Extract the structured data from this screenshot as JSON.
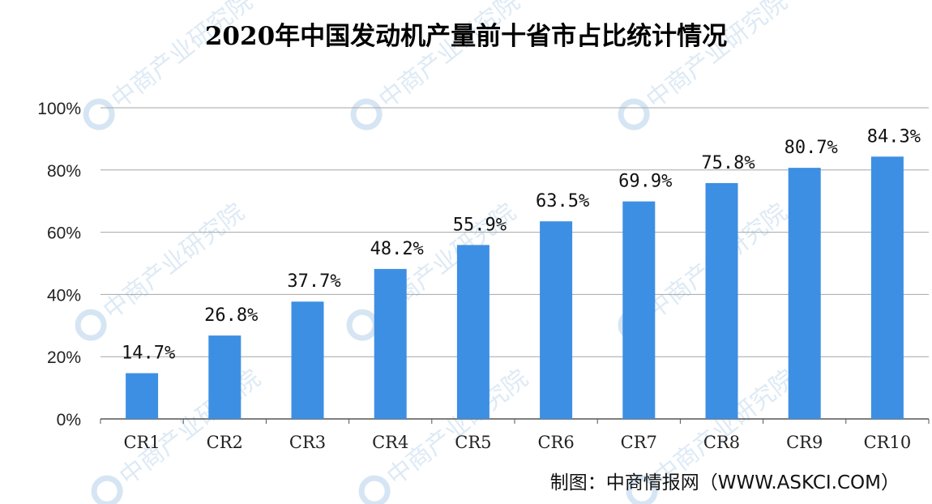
{
  "chart_data": {
    "type": "bar",
    "title": "2020年中国发动机产量前十省市占比统计情况",
    "categories": [
      "CR1",
      "CR2",
      "CR3",
      "CR4",
      "CR5",
      "CR6",
      "CR7",
      "CR8",
      "CR9",
      "CR10"
    ],
    "values": [
      14.7,
      26.8,
      37.7,
      48.2,
      55.9,
      63.5,
      69.9,
      75.8,
      80.7,
      84.3
    ],
    "data_labels": [
      "14.7%",
      "26.8%",
      "37.7%",
      "48.2%",
      "55.9%",
      "63.5%",
      "69.9%",
      "75.8%",
      "80.7%",
      "84.3%"
    ],
    "ylim": [
      0,
      100
    ],
    "yticks": [
      0,
      20,
      40,
      60,
      80,
      100
    ],
    "ytick_labels": [
      "0%",
      "20%",
      "40%",
      "60%",
      "80%",
      "100%"
    ],
    "xlabel": "",
    "ylabel": "",
    "grid": true,
    "bar_color": "#3d8fe3"
  },
  "source": "制图：中商情报网（WWW.ASKCI.COM）",
  "watermark": "中商产业研究院"
}
